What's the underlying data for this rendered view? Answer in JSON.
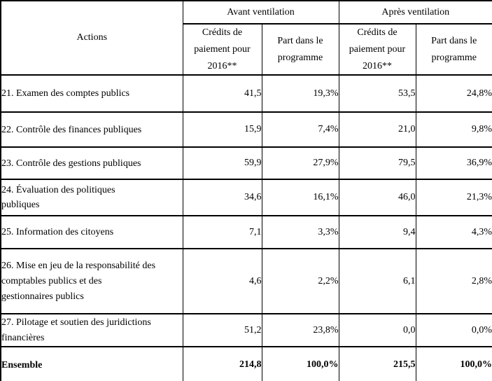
{
  "table": {
    "header": {
      "actions_label": "Actions",
      "group_avant": "Avant ventilation",
      "group_apres": "Après ventilation",
      "sub_credits": "Crédits de\npaiement pour\n2016**",
      "sub_part": "Part dans le\nprogramme"
    },
    "rows": [
      {
        "action": "21. Examen des comptes publics",
        "avant_credits": "41,5",
        "avant_part": "19,3%",
        "apres_credits": "53,5",
        "apres_part": "24,8%"
      },
      {
        "action": "22. Contrôle des finances publiques",
        "avant_credits": "15,9",
        "avant_part": "7,4%",
        "apres_credits": "21,0",
        "apres_part": "9,8%"
      },
      {
        "action": "23. Contrôle des gestions publiques",
        "avant_credits": "59,9",
        "avant_part": "27,9%",
        "apres_credits": "79,5",
        "apres_part": "36,9%"
      },
      {
        "action": "24. Évaluation des politiques\npubliques",
        "avant_credits": "34,6",
        "avant_part": "16,1%",
        "apres_credits": "46,0",
        "apres_part": "21,3%"
      },
      {
        "action": "25. Information des citoyens",
        "avant_credits": "7,1",
        "avant_part": "3,3%",
        "apres_credits": "9,4",
        "apres_part": "4,3%"
      },
      {
        "action": "26. Mise en jeu de la responsabilité des\ncomptables publics et des\ngestionnaires publics",
        "avant_credits": "4,6",
        "avant_part": "2,2%",
        "apres_credits": "6,1",
        "apres_part": "2,8%"
      },
      {
        "action": "27. Pilotage et soutien des juridictions\nfinancières",
        "avant_credits": "51,2",
        "avant_part": "23,8%",
        "apres_credits": "0,0",
        "apres_part": "0,0%"
      }
    ],
    "total": {
      "action": "Ensemble",
      "avant_credits": "214,8",
      "avant_part": "100,0%",
      "apres_credits": "215,5",
      "apres_part": "100,0%"
    }
  }
}
